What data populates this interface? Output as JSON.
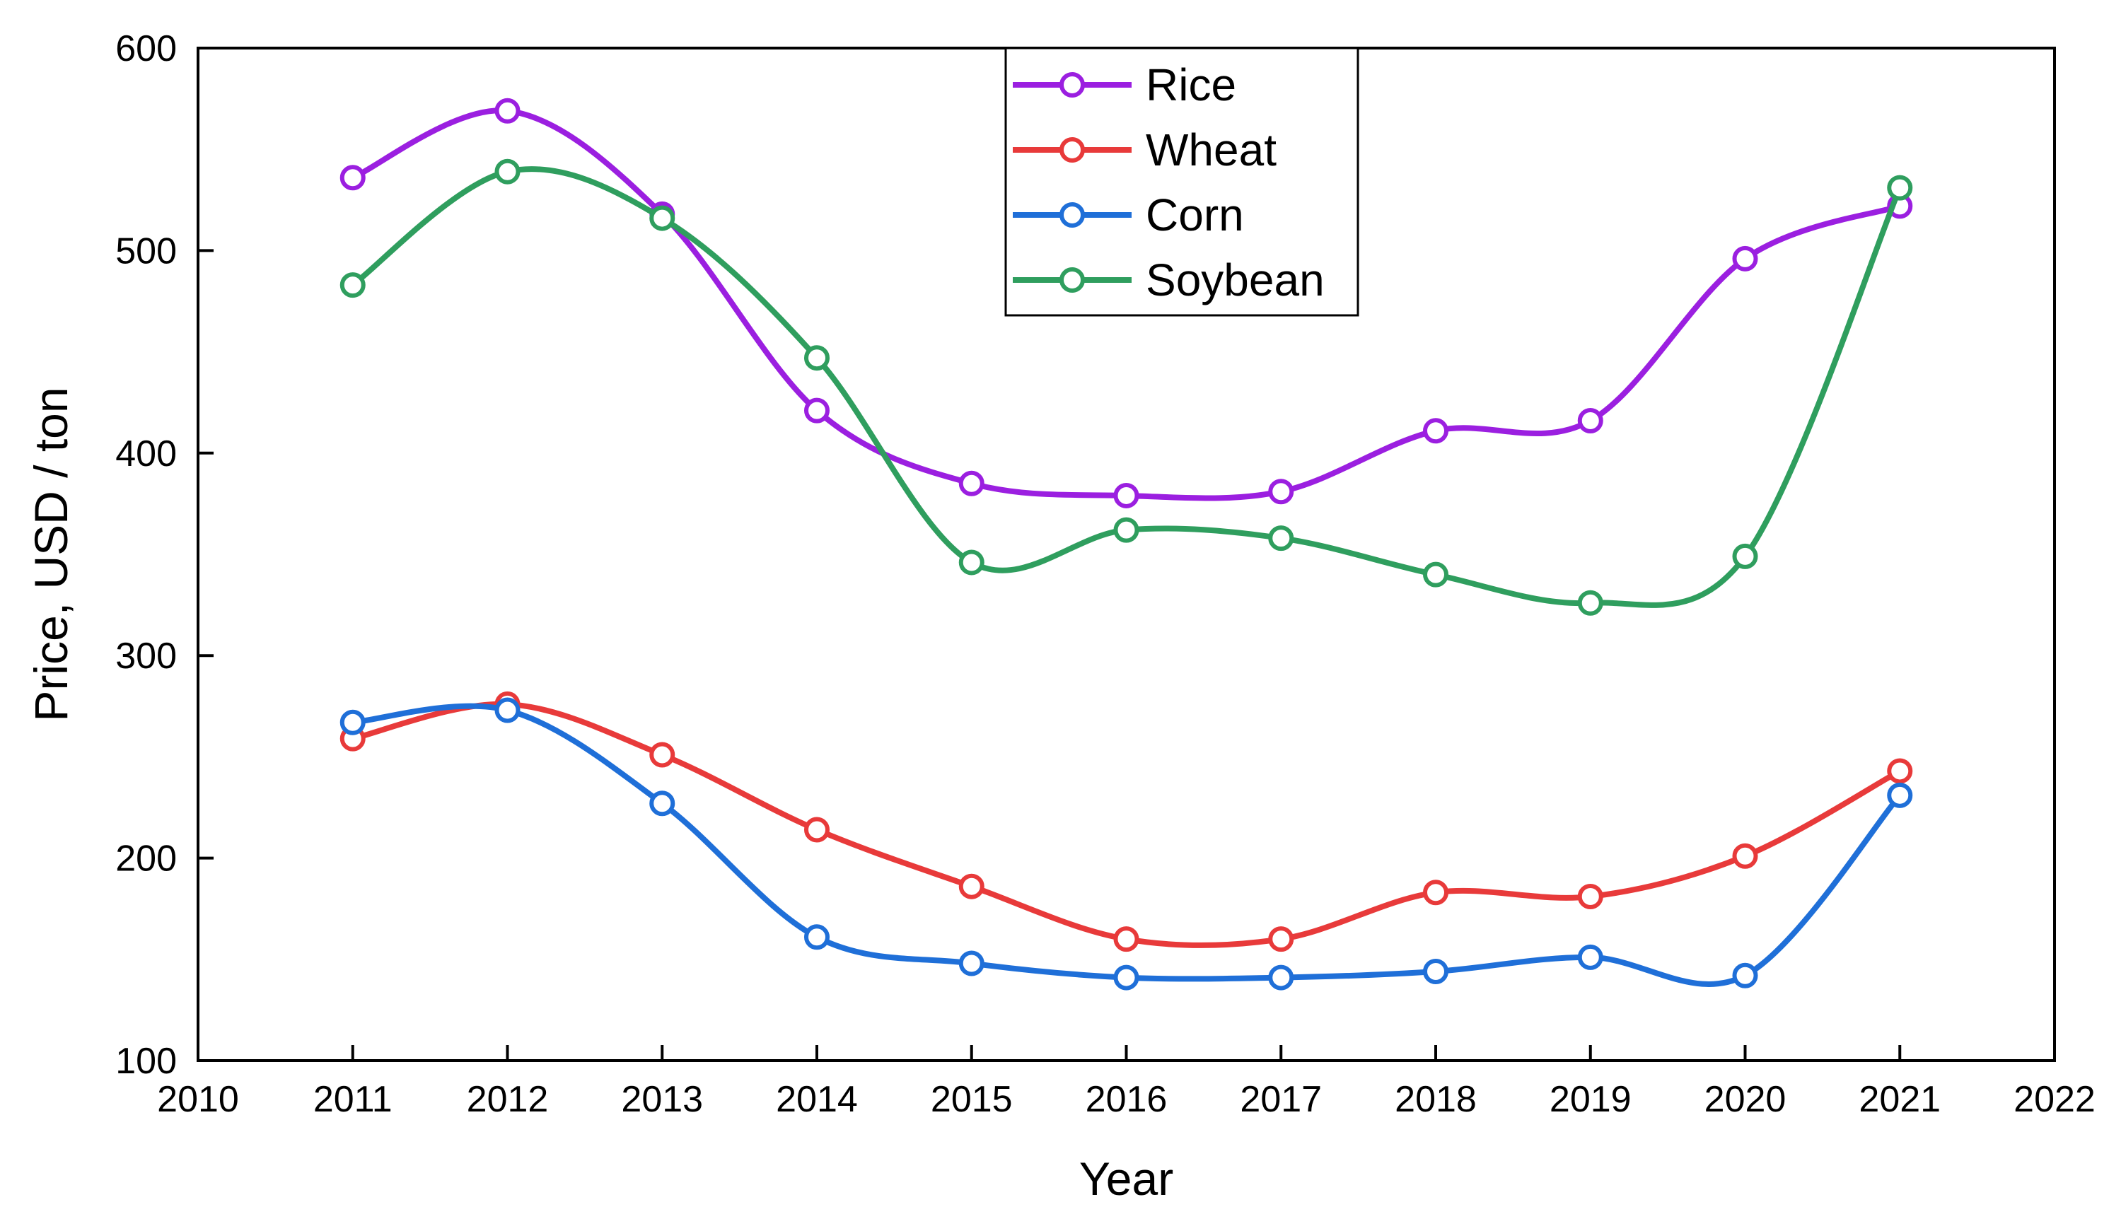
{
  "chart_data": {
    "type": "line",
    "title": "",
    "xlabel": "Year",
    "ylabel": "Price, USD / ton",
    "xlim": [
      2010,
      2022
    ],
    "ylim": [
      100,
      600
    ],
    "x_ticks": [
      2010,
      2011,
      2012,
      2013,
      2014,
      2015,
      2016,
      2017,
      2018,
      2019,
      2020,
      2021,
      2022
    ],
    "y_ticks": [
      100,
      200,
      300,
      400,
      500,
      600
    ],
    "grid": false,
    "legend_position": "top-center",
    "smooth": true,
    "x": [
      2011,
      2012,
      2013,
      2014,
      2015,
      2016,
      2017,
      2018,
      2019,
      2020,
      2021
    ],
    "series": [
      {
        "name": "Rice",
        "color": "#9b1fe0",
        "values": [
          536,
          569,
          518,
          421,
          385,
          379,
          381,
          411,
          416,
          496,
          522
        ]
      },
      {
        "name": "Wheat",
        "color": "#e83a3a",
        "values": [
          259,
          276,
          251,
          214,
          186,
          160,
          160,
          183,
          181,
          201,
          243
        ]
      },
      {
        "name": "Corn",
        "color": "#1f6fd8",
        "values": [
          267,
          273,
          227,
          161,
          148,
          141,
          141,
          144,
          151,
          142,
          231
        ]
      },
      {
        "name": "Soybean",
        "color": "#2f9e5e",
        "values": [
          483,
          539,
          516,
          447,
          346,
          362,
          358,
          340,
          326,
          349,
          531
        ]
      }
    ]
  }
}
